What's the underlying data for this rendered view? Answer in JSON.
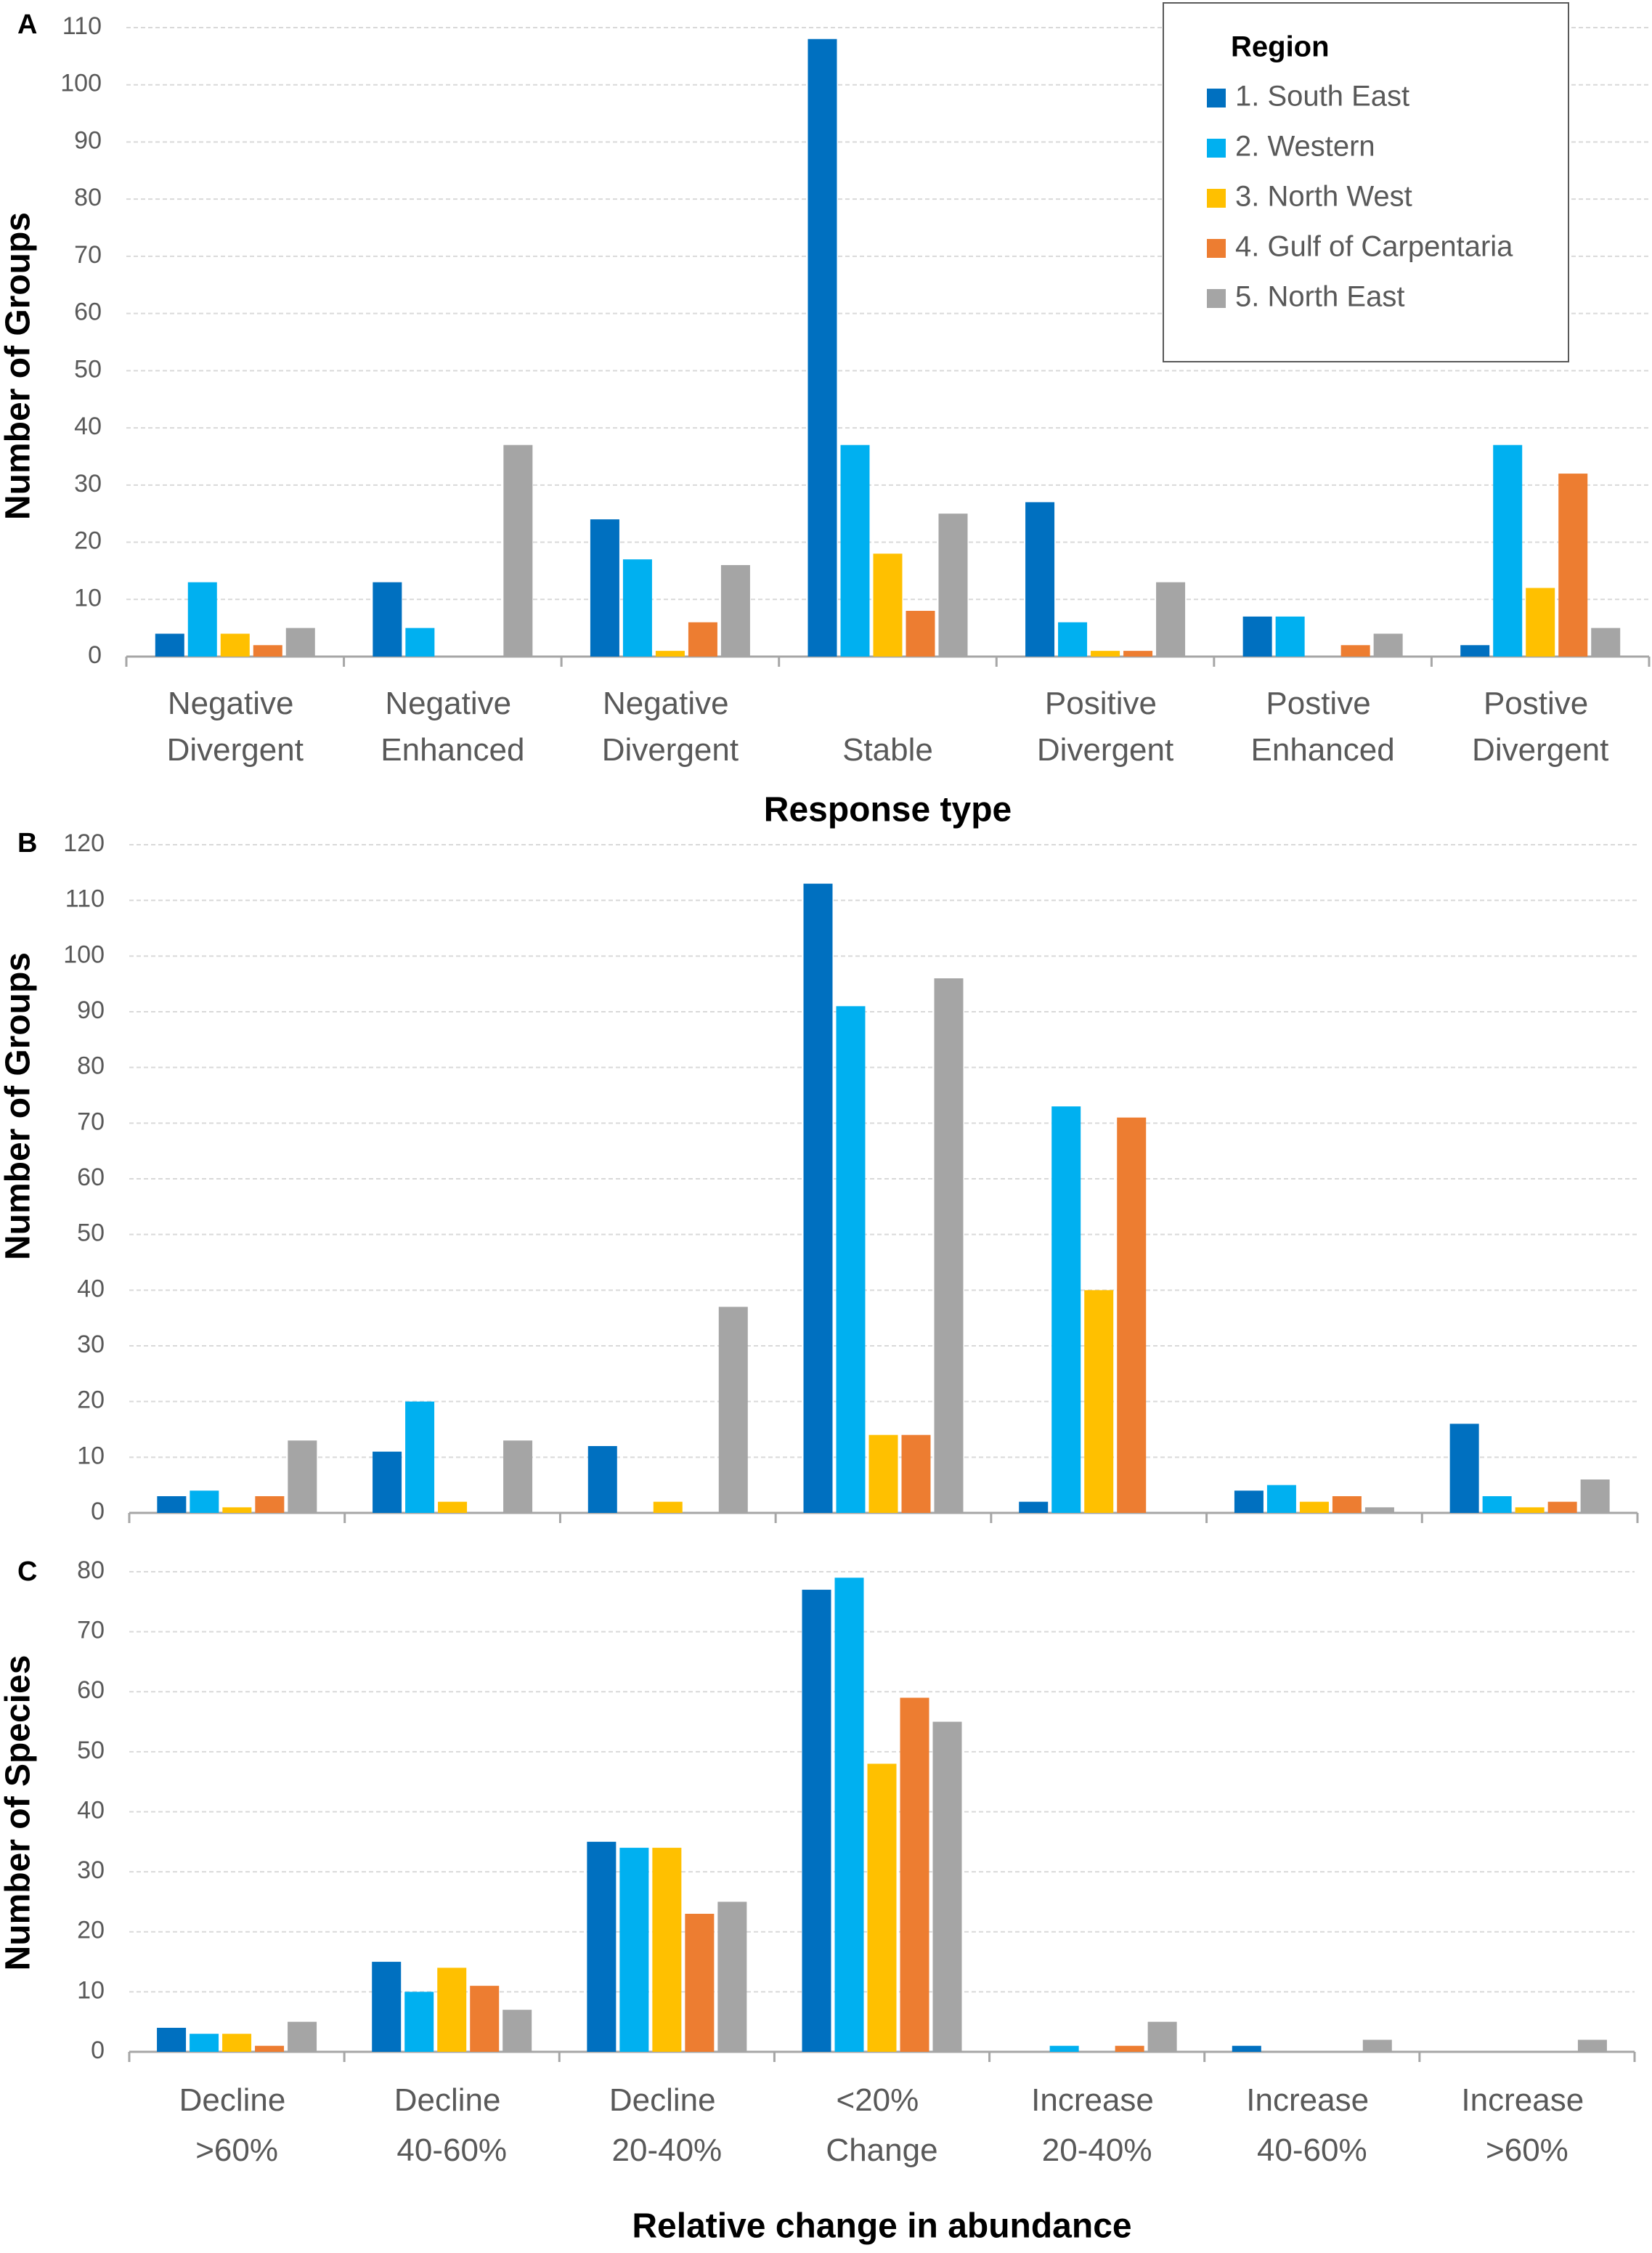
{
  "chart_data": [
    {
      "type": "bar",
      "label": "A",
      "x_label": "Response type",
      "y_label": "Number of Groups",
      "legend_title": "Region",
      "categories": [
        "Negative Divergent",
        "Negative Enhanced",
        "Negative Divergent",
        "Stable",
        "Positive Divergent",
        "Postive Enhanced",
        "Postive Divergent"
      ],
      "series": [
        {
          "name": "1. South East",
          "color": "#0070c0",
          "values": [
            4,
            13,
            24,
            108,
            27,
            7,
            2
          ]
        },
        {
          "name": "2. Western",
          "color": "#00b0f0",
          "values": [
            13,
            5,
            17,
            37,
            6,
            7,
            37
          ]
        },
        {
          "name": "3. North West",
          "color": "#ffc000",
          "values": [
            4,
            0,
            1,
            18,
            1,
            0,
            12
          ]
        },
        {
          "name": "4. Gulf of Carpentaria",
          "color": "#ed7d31",
          "values": [
            2,
            0,
            6,
            8,
            1,
            2,
            32
          ]
        },
        {
          "name": "5. North East",
          "color": "#a5a5a5",
          "values": [
            5,
            37,
            16,
            25,
            13,
            4,
            5
          ]
        }
      ],
      "ylim": [
        0,
        110
      ],
      "yticks": [
        0,
        10,
        20,
        30,
        40,
        50,
        60,
        70,
        80,
        90,
        100,
        110
      ],
      "grid": true
    },
    {
      "type": "bar",
      "label": "B",
      "y_label": "Number of Groups",
      "series": [
        {
          "color": "#0070c0",
          "values": [
            3,
            11,
            12,
            113,
            2,
            4,
            16
          ]
        },
        {
          "color": "#00b0f0",
          "values": [
            4,
            20,
            0,
            91,
            73,
            5,
            3
          ]
        },
        {
          "color": "#ffc000",
          "values": [
            1,
            2,
            2,
            14,
            40,
            2,
            1
          ]
        },
        {
          "color": "#ed7d31",
          "values": [
            3,
            0,
            0,
            14,
            71,
            3,
            2
          ]
        },
        {
          "color": "#a5a5a5",
          "values": [
            13,
            13,
            37,
            96,
            0,
            1,
            6
          ]
        }
      ],
      "ylim": [
        0,
        120
      ],
      "yticks": [
        0,
        10,
        20,
        30,
        40,
        50,
        60,
        70,
        80,
        90,
        100,
        110,
        120
      ],
      "grid": true
    },
    {
      "type": "bar",
      "label": "C",
      "x_label": "Relative change in abundance",
      "y_label": "Number of Species",
      "categories": [
        "Decline >60%",
        "Decline 40-60%",
        "Decline 20-40%",
        "<20% Change",
        "Increase 20-40%",
        "Increase 40-60%",
        "Increase >60%"
      ],
      "series": [
        {
          "color": "#0070c0",
          "values": [
            4,
            15,
            35,
            77,
            0,
            1,
            0
          ]
        },
        {
          "color": "#00b0f0",
          "values": [
            3,
            10,
            34,
            79,
            1,
            0,
            0
          ]
        },
        {
          "color": "#ffc000",
          "values": [
            3,
            14,
            34,
            48,
            0,
            0,
            0
          ]
        },
        {
          "color": "#ed7d31",
          "values": [
            1,
            11,
            23,
            59,
            1,
            0,
            0
          ]
        },
        {
          "color": "#a5a5a5",
          "values": [
            5,
            7,
            25,
            55,
            5,
            2,
            2
          ]
        }
      ],
      "ylim": [
        0,
        80
      ],
      "yticks": [
        0,
        10,
        20,
        30,
        40,
        50,
        60,
        70,
        80
      ],
      "grid": true
    }
  ]
}
